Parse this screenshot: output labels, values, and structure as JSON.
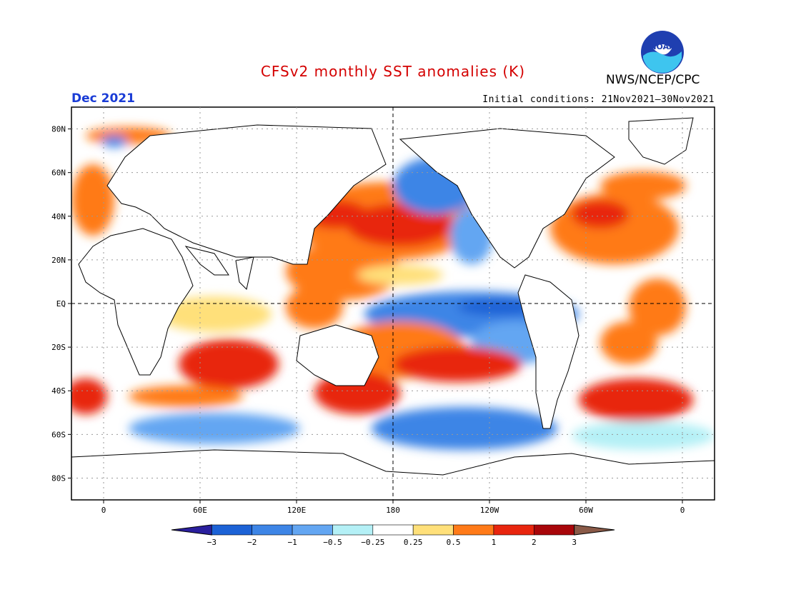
{
  "header": {
    "title": "CFSv2 monthly SST anomalies (K)",
    "agency": "NWS/NCEP/CPC",
    "logo_text": "NOAA",
    "valid_month": "Dec 2021",
    "initial_conditions": "Initial conditions: 21Nov2021–30Nov2021"
  },
  "map": {
    "projection": "equirectangular",
    "lon_range": [
      -20,
      380
    ],
    "lat_range": [
      -90,
      90
    ],
    "lat_ticks": [
      {
        "lat": 80,
        "label": "80N"
      },
      {
        "lat": 60,
        "label": "60N"
      },
      {
        "lat": 40,
        "label": "40N"
      },
      {
        "lat": 20,
        "label": "20N"
      },
      {
        "lat": 0,
        "label": "EQ"
      },
      {
        "lat": -20,
        "label": "20S"
      },
      {
        "lat": -40,
        "label": "40S"
      },
      {
        "lat": -60,
        "label": "60S"
      },
      {
        "lat": -80,
        "label": "80S"
      }
    ],
    "lon_ticks": [
      {
        "lon": 0,
        "label": "0"
      },
      {
        "lon": 60,
        "label": "60E"
      },
      {
        "lon": 120,
        "label": "120E"
      },
      {
        "lon": 180,
        "label": "180"
      },
      {
        "lon": 240,
        "label": "120W"
      },
      {
        "lon": 300,
        "label": "60W"
      },
      {
        "lon": 360,
        "label": "0"
      }
    ],
    "land_color": "#ffffff"
  },
  "colorbar": {
    "labels": [
      "−3",
      "−2",
      "−1",
      "−0.5",
      "−0.25",
      "0.25",
      "0.5",
      "1",
      "2",
      "3"
    ],
    "bins": [
      "#2a1f9e",
      "#1c62d6",
      "#3d85e6",
      "#63a6f2",
      "#b4f0f6",
      "#ffffff",
      "#ffe07a",
      "#ff7a18",
      "#e8250e",
      "#a8060a",
      "#8a5a48"
    ]
  }
}
